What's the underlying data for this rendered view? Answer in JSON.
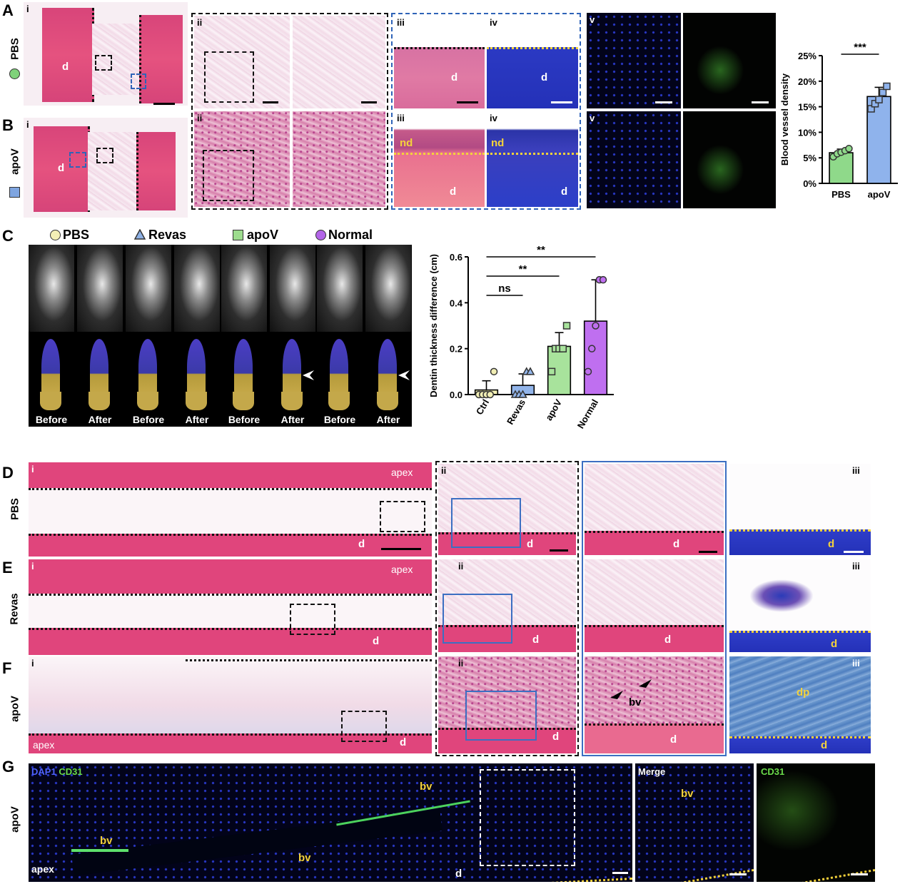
{
  "panel_letters": [
    "A",
    "B",
    "C",
    "D",
    "E",
    "F",
    "G"
  ],
  "row_labels": {
    "A": "PBS",
    "B": "apoV",
    "D": "PBS",
    "E": "Revas",
    "F": "apoV",
    "G": "apoV"
  },
  "sub_labels": {
    "i": "i",
    "ii": "ii",
    "iii": "iii",
    "iv": "iv",
    "v": "v"
  },
  "tissue_labels": {
    "d": "d",
    "nd": "nd",
    "apex": "apex",
    "bv": "bv",
    "dp": "dp"
  },
  "panel_C": {
    "legend": [
      {
        "symbol": "circle",
        "color": "#f3efb6",
        "label": "PBS"
      },
      {
        "symbol": "triangle",
        "color": "#8fb2e6",
        "label": "Revas"
      },
      {
        "symbol": "square",
        "color": "#9ddc8e",
        "label": "apoV"
      },
      {
        "symbol": "circle",
        "color": "#b365e8",
        "label": "Normal"
      }
    ],
    "before_label": "Before",
    "after_label": "After"
  },
  "panel_G": {
    "stain_dapi": "DAP1",
    "stain_cd31": "CD31",
    "merge_label": "Merge",
    "cd31_label": "CD31"
  },
  "chart_data": [
    {
      "id": "blood-vessel-density",
      "type": "bar",
      "categories": [
        "PBS",
        "apoV"
      ],
      "values": [
        6.0,
        17.0
      ],
      "errors": [
        0.7,
        1.8
      ],
      "points": [
        [
          5.2,
          5.8,
          6.1,
          6.4,
          6.8
        ],
        [
          14.6,
          15.6,
          16.4,
          17.8,
          19.0
        ]
      ],
      "bar_colors": [
        "#8fd98a",
        "#8fb3ec"
      ],
      "point_shapes": [
        "circle",
        "square"
      ],
      "ylabel": "Blood vessel density",
      "ylim": [
        0,
        25
      ],
      "yticks": [
        "0%",
        "5%",
        "10%",
        "15%",
        "20%",
        "25%"
      ],
      "significance": [
        {
          "pair": [
            0,
            1
          ],
          "label": "***"
        }
      ]
    },
    {
      "id": "dentin-thickness-difference",
      "type": "bar",
      "categories": [
        "Ctrl",
        "Revas",
        "apoV",
        "Normal"
      ],
      "values": [
        0.02,
        0.04,
        0.21,
        0.32
      ],
      "errors": [
        0.04,
        0.05,
        0.06,
        0.18
      ],
      "points": [
        [
          0.0,
          0.0,
          0.0,
          0.0,
          0.1
        ],
        [
          0.0,
          0.0,
          0.0,
          0.1,
          0.1
        ],
        [
          0.1,
          0.2,
          0.2,
          0.2,
          0.3
        ],
        [
          0.1,
          0.2,
          0.3,
          0.5,
          0.5
        ]
      ],
      "bar_colors": [
        "#f1eeb4",
        "#92b5ea",
        "#a8e39c",
        "#bf6ff0"
      ],
      "point_shapes": [
        "circle",
        "triangle",
        "square",
        "circle"
      ],
      "ylabel": "Dentin thickness difference (cm)",
      "ylim": [
        0,
        0.6
      ],
      "yticks": [
        "0.0",
        "0.2",
        "0.4",
        "0.6"
      ],
      "significance": [
        {
          "pair": [
            0,
            1
          ],
          "label": "ns"
        },
        {
          "pair": [
            0,
            2
          ],
          "label": "**"
        },
        {
          "pair": [
            0,
            3
          ],
          "label": "**"
        }
      ]
    }
  ]
}
